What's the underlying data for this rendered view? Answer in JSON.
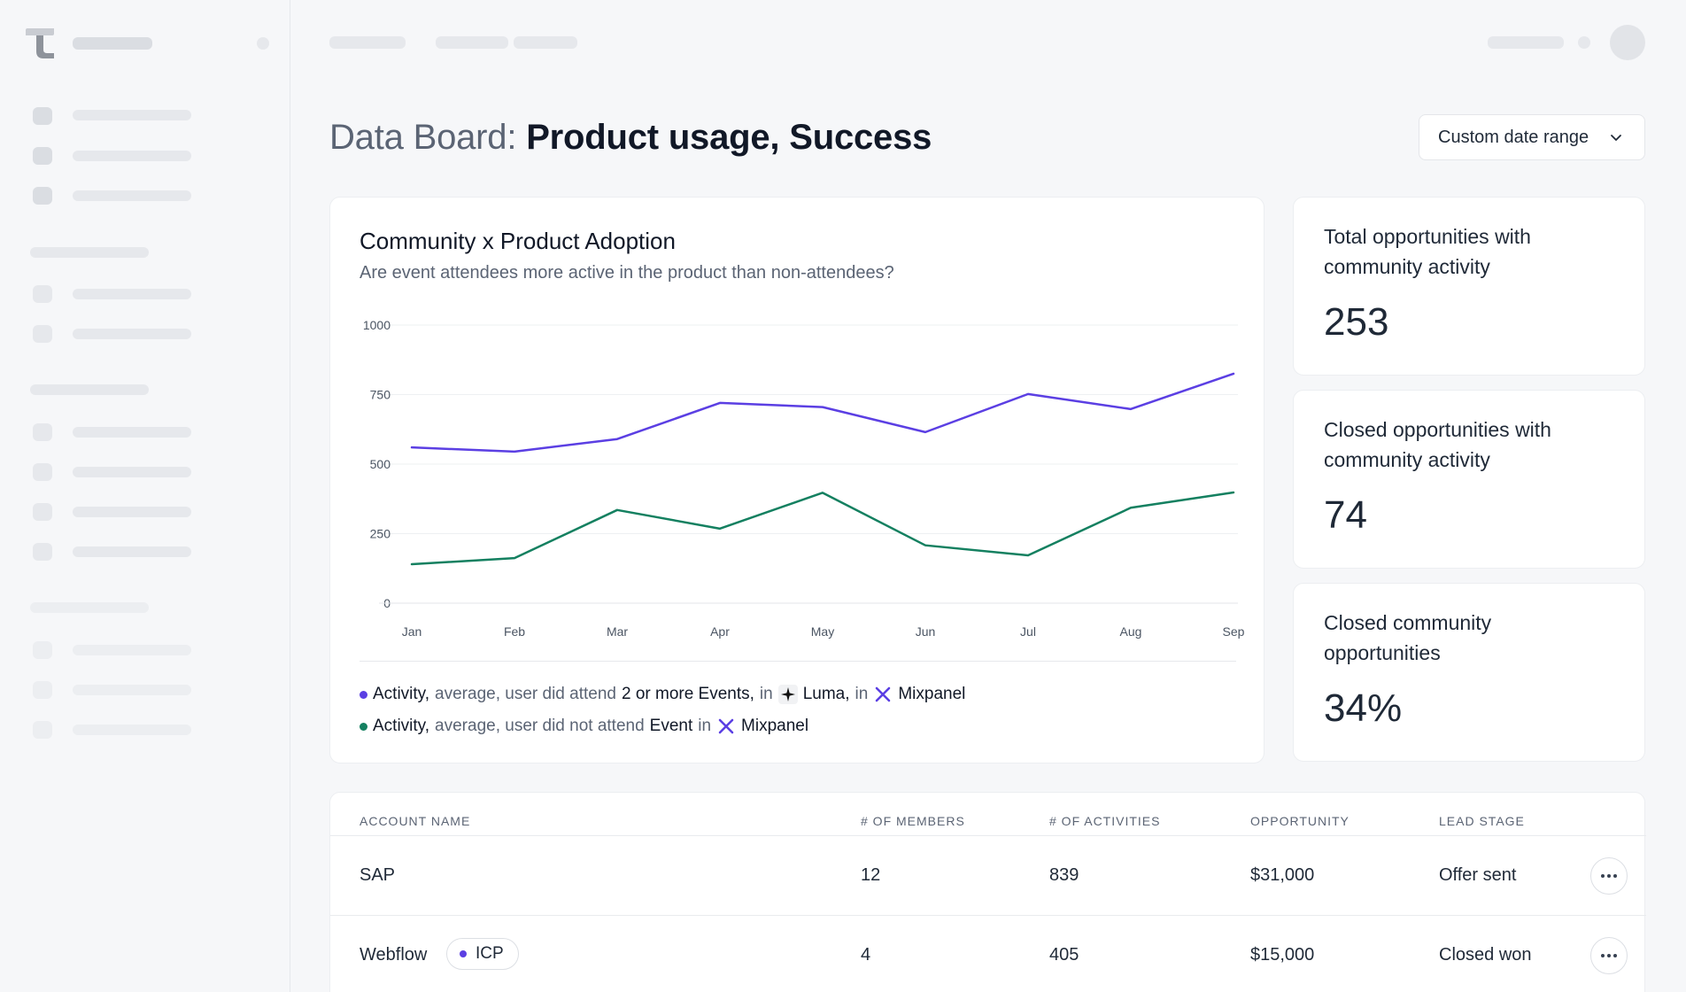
{
  "header": {
    "title_prefix": "Data Board:",
    "title_main": "Product usage, Success",
    "date_range_label": "Custom date range"
  },
  "chart_card": {
    "title": "Community x Product Adoption",
    "subtitle": "Are event attendees more active in the product than non-attendees?",
    "legend": [
      {
        "color": "#5b3fe3",
        "metric": "Activity,",
        "agg": "average, user did attend",
        "event": "2 or more Events,",
        "in1": "in",
        "source1": "Luma,",
        "in2": "in",
        "source2": "Mixpanel"
      },
      {
        "color": "#148060",
        "metric": "Activity,",
        "agg": "average, user did not attend",
        "event": "Event",
        "in1": "in",
        "source1": "Mixpanel"
      }
    ]
  },
  "chart_data": {
    "type": "line",
    "title": "Community x Product Adoption",
    "subtitle": "Are event attendees more active in the product than non-attendees?",
    "x": [
      "Jan",
      "Feb",
      "Mar",
      "Apr",
      "May",
      "Jun",
      "Jul",
      "Aug",
      "Sep"
    ],
    "yticks": [
      "0",
      "250",
      "500",
      "750",
      "1000"
    ],
    "ylim": [
      0,
      1000
    ],
    "grid": true,
    "series": [
      {
        "name": "Activity, average, user did attend 2 or more Events, in Luma, in Mixpanel",
        "color": "#5b3fe3",
        "values": [
          560,
          545,
          590,
          720,
          705,
          615,
          752,
          698,
          825
        ]
      },
      {
        "name": "Activity, average, user did not attend Event in Mixpanel",
        "color": "#148060",
        "values": [
          140,
          162,
          335,
          268,
          397,
          208,
          172,
          343,
          398
        ]
      }
    ]
  },
  "stats": [
    {
      "label": "Total opportunities with community activity",
      "value": "253"
    },
    {
      "label": "Closed opportunities with community activity",
      "value": "74"
    },
    {
      "label": "Closed community opportunities",
      "value": "34%"
    }
  ],
  "table": {
    "headers": [
      "ACCOUNT NAME",
      "# OF MEMBERS",
      "# OF ACTIVITIES",
      "OPPORTUNITY",
      "LEAD STAGE"
    ],
    "rows": [
      {
        "name": "SAP",
        "badge": "",
        "members": "12",
        "activities": "839",
        "opportunity": "$31,000",
        "stage": "Offer sent"
      },
      {
        "name": "Webflow",
        "badge": "ICP",
        "members": "4",
        "activities": "405",
        "opportunity": "$15,000",
        "stage": "Closed won"
      }
    ],
    "badge_color": "#5b3fe3"
  }
}
